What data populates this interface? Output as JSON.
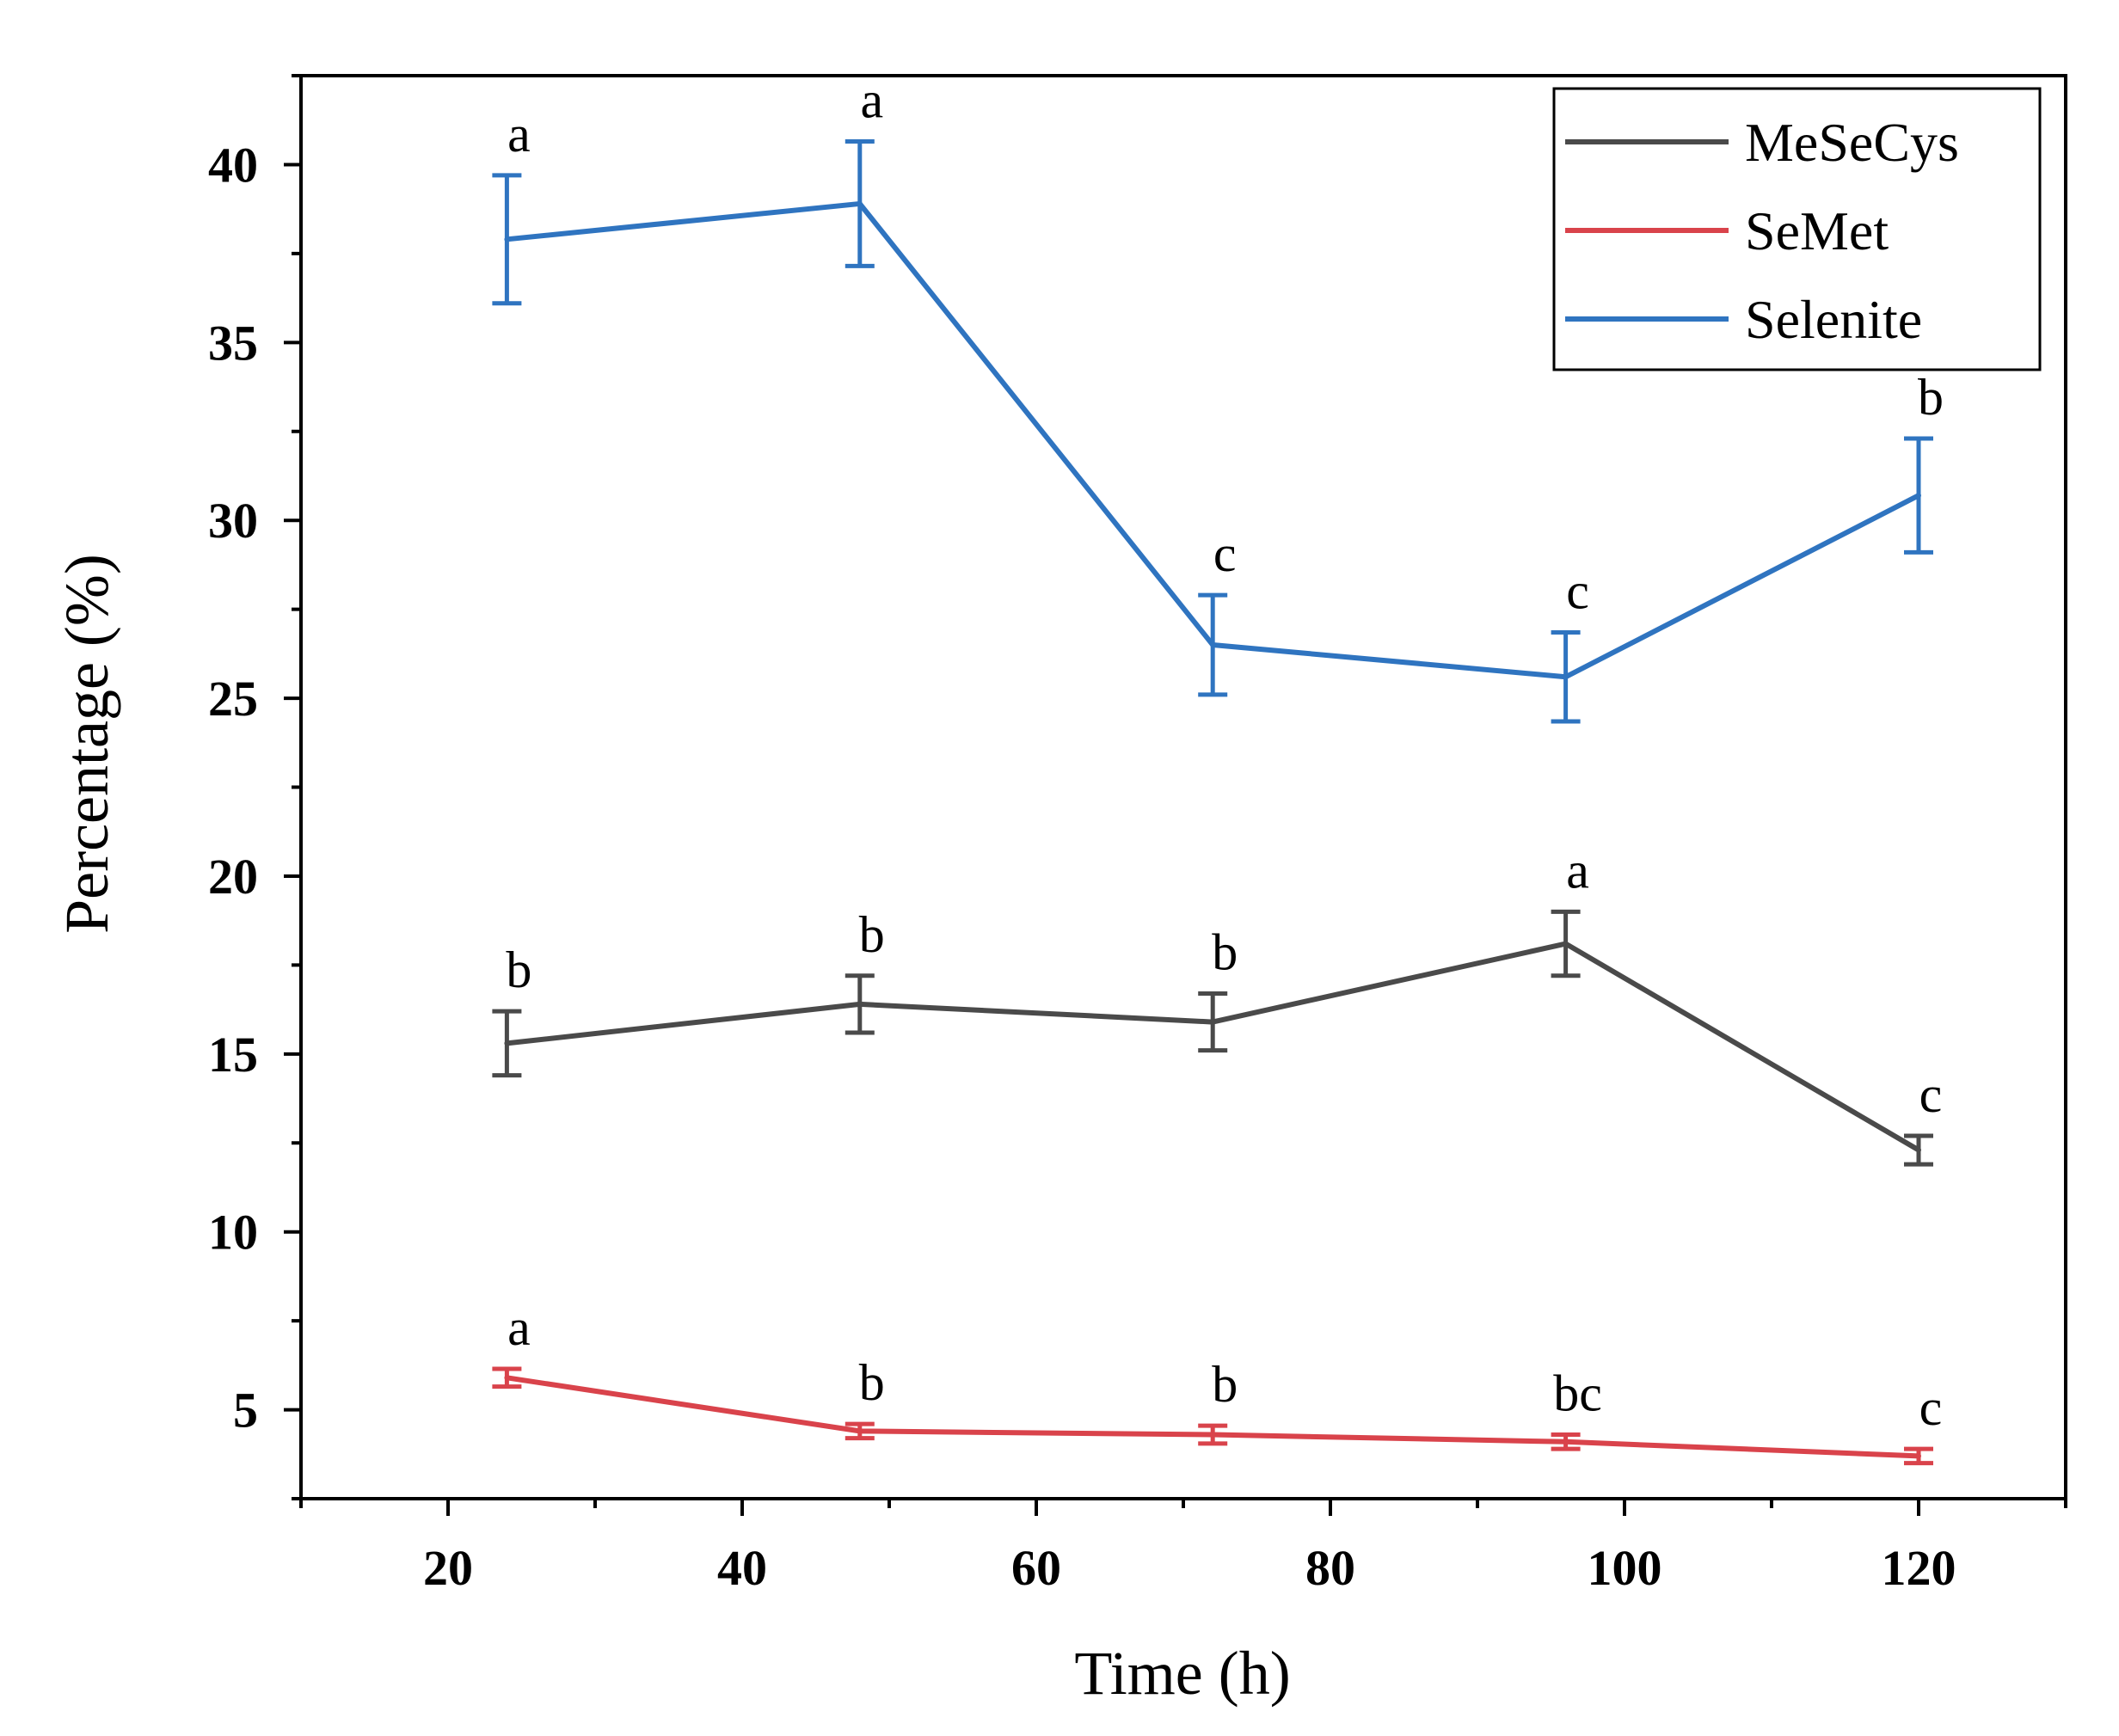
{
  "chart_data": {
    "type": "line",
    "title": "",
    "xlabel": "Time (h)",
    "ylabel": "Percentage (%)",
    "xlim": [
      10,
      130
    ],
    "ylim": [
      2.5,
      42.5
    ],
    "x_ticks": [
      20,
      40,
      60,
      80,
      100,
      120
    ],
    "y_ticks": [
      5,
      10,
      15,
      20,
      25,
      30,
      35,
      40
    ],
    "x": [
      24,
      48,
      72,
      96,
      120
    ],
    "legend_position": "top-right",
    "grid": false,
    "series": [
      {
        "name": "MeSeCys",
        "color": "#4a4a4a",
        "values": [
          15.3,
          16.4,
          15.9,
          18.1,
          12.3
        ],
        "errors": [
          0.9,
          0.8,
          0.8,
          0.9,
          0.4
        ],
        "sig_labels": [
          "b",
          "b",
          "b",
          "a",
          "c"
        ]
      },
      {
        "name": "SeMet",
        "color": "#d9434b",
        "values": [
          5.9,
          4.4,
          4.3,
          4.1,
          3.7
        ],
        "errors": [
          0.25,
          0.2,
          0.25,
          0.2,
          0.2
        ],
        "sig_labels": [
          "a",
          "b",
          "b",
          "bc",
          "c"
        ]
      },
      {
        "name": "Selenite",
        "color": "#2f74c0",
        "values": [
          37.9,
          38.9,
          26.5,
          25.6,
          30.7
        ],
        "errors": [
          1.8,
          1.75,
          1.4,
          1.25,
          1.6
        ],
        "sig_labels": [
          "a",
          "a",
          "c",
          "c",
          "b"
        ]
      }
    ]
  }
}
